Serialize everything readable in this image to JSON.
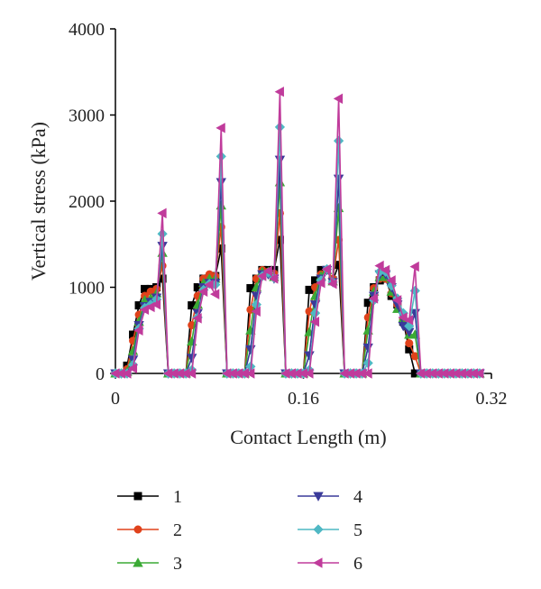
{
  "chart_data": {
    "type": "line",
    "title": "",
    "xlabel": "Contact Length (m)",
    "ylabel": "Vertical stress (kPa)",
    "xlim": [
      0,
      0.32
    ],
    "ylim": [
      0,
      4000
    ],
    "xticks": [
      "0",
      "0.16",
      "0.32"
    ],
    "yticks": [
      "0",
      "1000",
      "2000",
      "3000",
      "4000"
    ],
    "grid": false,
    "legend_position": "bottom",
    "x": [
      0,
      0.005,
      0.01,
      0.015,
      0.02,
      0.025,
      0.03,
      0.035,
      0.04,
      0.045,
      0.05,
      0.055,
      0.06,
      0.065,
      0.07,
      0.075,
      0.08,
      0.085,
      0.09,
      0.095,
      0.1,
      0.105,
      0.11,
      0.115,
      0.12,
      0.125,
      0.13,
      0.135,
      0.14,
      0.145,
      0.15,
      0.155,
      0.16,
      0.165,
      0.17,
      0.175,
      0.18,
      0.185,
      0.19,
      0.195,
      0.2,
      0.205,
      0.21,
      0.215,
      0.22,
      0.225,
      0.23,
      0.235,
      0.24,
      0.245,
      0.25,
      0.255,
      0.26,
      0.265,
      0.27,
      0.275,
      0.28,
      0.285,
      0.29,
      0.295,
      0.3,
      0.305,
      0.31
    ],
    "series": [
      {
        "name": "1",
        "color": "#000000",
        "marker": "square",
        "values": [
          0,
          0,
          90,
          450,
          790,
          980,
          980,
          1000,
          1100,
          0,
          0,
          0,
          0,
          790,
          1000,
          1100,
          1100,
          1130,
          1450,
          0,
          0,
          0,
          0,
          990,
          1100,
          1200,
          1200,
          1200,
          1550,
          0,
          0,
          0,
          0,
          970,
          1080,
          1200,
          1200,
          1080,
          1260,
          0,
          0,
          0,
          0,
          820,
          1000,
          1080,
          1100,
          900,
          800,
          600,
          280,
          0,
          0,
          0,
          0,
          0,
          0,
          0,
          0,
          0,
          0,
          0,
          0
        ]
      },
      {
        "name": "2",
        "color": "#e0421b",
        "marker": "circle",
        "values": [
          0,
          0,
          50,
          380,
          680,
          900,
          950,
          980,
          1250,
          0,
          0,
          0,
          0,
          560,
          900,
          1100,
          1150,
          1130,
          1700,
          0,
          0,
          0,
          0,
          740,
          1100,
          1200,
          1180,
          1160,
          1860,
          0,
          0,
          0,
          0,
          720,
          1000,
          1150,
          1200,
          1100,
          1550,
          0,
          0,
          0,
          0,
          650,
          990,
          1100,
          1100,
          930,
          800,
          630,
          350,
          200,
          0,
          0,
          0,
          0,
          0,
          0,
          0,
          0,
          0,
          0,
          0
        ]
      },
      {
        "name": "3",
        "color": "#3aaa35",
        "marker": "triangle-up",
        "values": [
          0,
          0,
          20,
          260,
          600,
          850,
          870,
          930,
          1400,
          0,
          0,
          0,
          0,
          370,
          800,
          1050,
          1100,
          1100,
          1950,
          0,
          0,
          0,
          0,
          500,
          1000,
          1180,
          1180,
          1120,
          2220,
          0,
          0,
          0,
          0,
          480,
          900,
          1130,
          1200,
          1070,
          1920,
          0,
          0,
          0,
          0,
          500,
          950,
          1120,
          1120,
          950,
          750,
          640,
          450,
          450,
          0,
          0,
          0,
          0,
          0,
          0,
          0,
          0,
          0,
          0,
          0
        ]
      },
      {
        "name": "4",
        "color": "#3a3a9a",
        "marker": "triangle-down",
        "values": [
          0,
          0,
          0,
          160,
          560,
          780,
          830,
          880,
          1480,
          0,
          0,
          0,
          0,
          180,
          700,
          1000,
          1050,
          1050,
          2220,
          0,
          0,
          0,
          0,
          280,
          900,
          1150,
          1150,
          1100,
          2480,
          0,
          0,
          0,
          0,
          210,
          800,
          1100,
          1200,
          1060,
          2260,
          0,
          0,
          0,
          0,
          300,
          900,
          1150,
          1150,
          1000,
          800,
          550,
          480,
          700,
          0,
          0,
          0,
          0,
          0,
          0,
          0,
          0,
          0,
          0,
          0
        ]
      },
      {
        "name": "5",
        "color": "#4fb8c4",
        "marker": "diamond",
        "values": [
          0,
          0,
          0,
          100,
          520,
          760,
          800,
          860,
          1620,
          0,
          0,
          0,
          0,
          40,
          650,
          970,
          1040,
          1030,
          2520,
          0,
          0,
          0,
          0,
          80,
          800,
          1130,
          1170,
          1110,
          2860,
          0,
          0,
          0,
          0,
          40,
          700,
          1080,
          1210,
          1060,
          2700,
          0,
          0,
          0,
          0,
          120,
          850,
          1180,
          1180,
          1020,
          870,
          700,
          550,
          960,
          0,
          0,
          0,
          0,
          0,
          0,
          0,
          0,
          0,
          0,
          0
        ]
      },
      {
        "name": "6",
        "color": "#c03b9b",
        "marker": "triangle-left",
        "values": [
          0,
          0,
          0,
          60,
          500,
          740,
          770,
          800,
          1860,
          0,
          0,
          0,
          0,
          0,
          640,
          950,
          1030,
          920,
          2850,
          0,
          0,
          0,
          0,
          0,
          720,
          1130,
          1190,
          1100,
          3270,
          0,
          0,
          0,
          0,
          0,
          600,
          1050,
          1210,
          1040,
          3190,
          0,
          0,
          0,
          0,
          0,
          870,
          1250,
          1200,
          1080,
          850,
          650,
          620,
          1240,
          0,
          0,
          0,
          0,
          0,
          0,
          0,
          0,
          0,
          0,
          0
        ]
      }
    ]
  }
}
